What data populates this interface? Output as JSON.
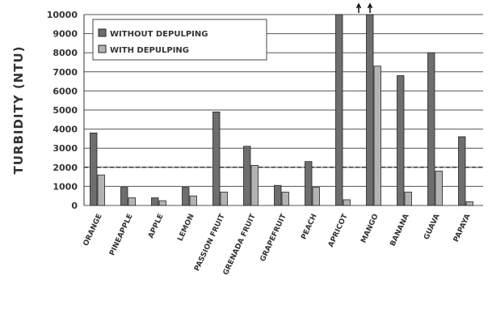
{
  "chart_data": {
    "type": "bar",
    "ylabel": "TURBIDITY (NTU)",
    "xlabel": "",
    "ylim": [
      0,
      10000
    ],
    "yticks": [
      0,
      1000,
      2000,
      3000,
      4000,
      5000,
      6000,
      7000,
      8000,
      9000,
      10000
    ],
    "grid": true,
    "legend_position": "top-left",
    "reference_line": 2000,
    "categories": [
      "ORANGE",
      "PINEAPPLE",
      "APPLE",
      "LEMON",
      "PASSION FRUIT",
      "GRENADA FRUIT",
      "GRAPEFRUIT",
      "PEACH",
      "APRICOT",
      "MANGO",
      "BANANA",
      "GUAVA",
      "PAPAYA"
    ],
    "series": [
      {
        "name": "WITHOUT DEPULPING",
        "values": [
          3800,
          950,
          400,
          950,
          4900,
          3100,
          1050,
          2300,
          10000,
          10000,
          6800,
          8000,
          3600
        ]
      },
      {
        "name": "WITH DEPULPING",
        "values": [
          1600,
          400,
          250,
          500,
          700,
          2100,
          700,
          950,
          300,
          7300,
          700,
          1800,
          200
        ]
      }
    ],
    "colors": {
      "without": "#6e6e6e",
      "with": "#b3b3b3"
    }
  }
}
